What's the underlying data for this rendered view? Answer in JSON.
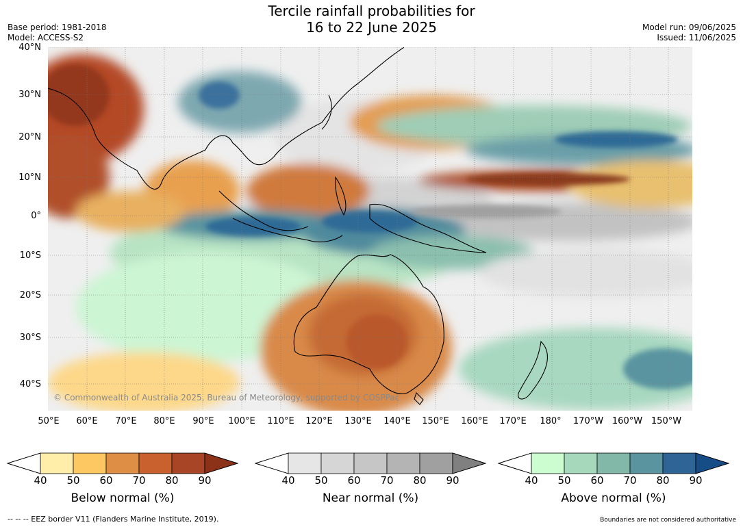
{
  "header": {
    "title_line1": "Tercile rainfall probabilities for",
    "title_line2": "16 to 22 June 2025",
    "base_period": "Base period: 1981-2018",
    "model": "Model: ACCESS-S2",
    "model_run": "Model run: 09/06/2025",
    "issued": "Issued: 11/06/2025"
  },
  "map": {
    "copyright": "© Commonwealth of Australia 2025, Bureau of Meteorology, supported by COSPPac",
    "lat_labels": [
      "40°N",
      "30°N",
      "20°N",
      "10°N",
      "0°",
      "10°S",
      "20°S",
      "30°S",
      "40°S"
    ],
    "lon_labels": [
      "50°E",
      "60°E",
      "70°E",
      "80°E",
      "90°E",
      "100°E",
      "110°E",
      "120°E",
      "130°E",
      "140°E",
      "150°E",
      "160°E",
      "170°E",
      "180°",
      "170°W",
      "160°W",
      "150°W"
    ],
    "extent": {
      "lon_min": 50,
      "lon_max": 216,
      "lat_min": -46.5,
      "lat_max": 40
    }
  },
  "legends": [
    {
      "title": "Below normal (%)",
      "ticks": [
        "40",
        "50",
        "60",
        "70",
        "80",
        "90"
      ],
      "colors": [
        "#ffeeaa",
        "#fdc862",
        "#df8f45",
        "#c9612f",
        "#a84527",
        "#8b3219"
      ]
    },
    {
      "title": "Near normal (%)",
      "ticks": [
        "40",
        "50",
        "60",
        "70",
        "80",
        "90"
      ],
      "colors": [
        "#e6e6e6",
        "#d6d6d6",
        "#c6c6c6",
        "#b4b4b4",
        "#a0a0a0",
        "#808080"
      ]
    },
    {
      "title": "Above normal (%)",
      "ticks": [
        "40",
        "50",
        "60",
        "70",
        "80",
        "90"
      ],
      "colors": [
        "#ccfdd0",
        "#a6d8bc",
        "#82b8a8",
        "#5a949f",
        "#2e6496",
        "#174d86"
      ]
    }
  ],
  "footer": {
    "left": "--  --  -- EEZ border V11 (Flanders Marine Institute, 2019).",
    "right": "Boundaries are not considered authoritative"
  }
}
